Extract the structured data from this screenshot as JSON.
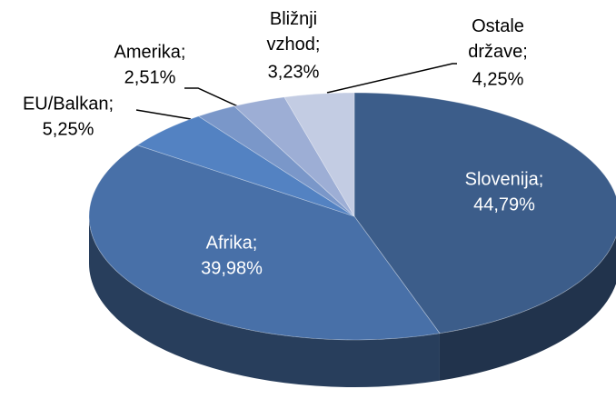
{
  "chart_data": {
    "type": "pie3d",
    "categories": [
      "Slovenija;",
      "Afrika;",
      "EU/Balkan;",
      "Amerika;",
      "Bližnji vzhod;",
      "Ostale države;"
    ],
    "values": [
      44.79,
      39.98,
      5.25,
      2.51,
      3.23,
      4.25
    ],
    "value_labels": [
      "44,79%",
      "39,98%",
      "5,25%",
      "2,51%",
      "3,23%",
      "4,25%"
    ],
    "colors": [
      "#3c5d8a",
      "#4870a8",
      "#5382c2",
      "#7a97c9",
      "#9daed5",
      "#c3cce3"
    ]
  }
}
